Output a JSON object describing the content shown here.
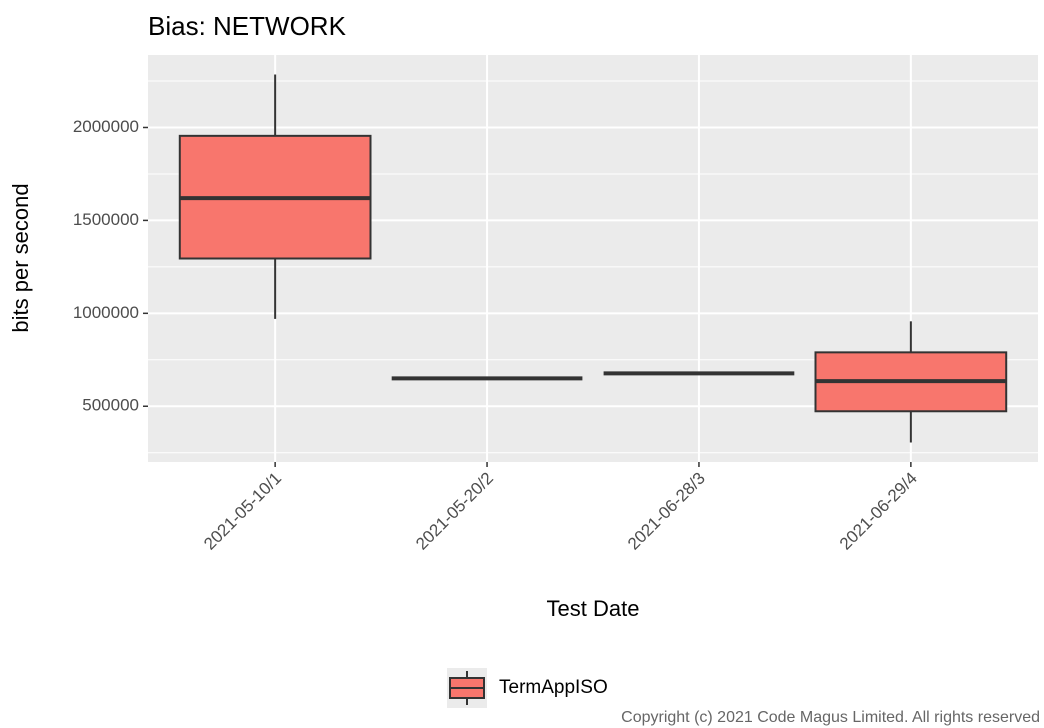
{
  "chart_data": {
    "type": "box",
    "title": "Bias: NETWORK",
    "x_label": "Test Date",
    "y_label": "bits per second",
    "categories": [
      "2021-05-10/1",
      "2021-05-20/2",
      "2021-06-28/3",
      "2021-06-29/4"
    ],
    "series": [
      {
        "name": "TermAppISO",
        "color": "#f8766d",
        "min": [
          970000,
          650000,
          677000,
          305000
        ],
        "q1": [
          1295000,
          650000,
          677000,
          473000
        ],
        "median": [
          1620000,
          650000,
          677000,
          635000
        ],
        "q3": [
          1955000,
          650000,
          677000,
          790000
        ],
        "max": [
          2285000,
          650000,
          677000,
          957000
        ]
      }
    ],
    "ylim": [
      200000,
      2390000
    ],
    "yticks": [
      500000,
      1000000,
      1500000,
      2000000
    ],
    "grid": true,
    "legend": "bottom",
    "footer": "Copyright (c) 2021 Code Magus Limited. All rights reserved"
  }
}
